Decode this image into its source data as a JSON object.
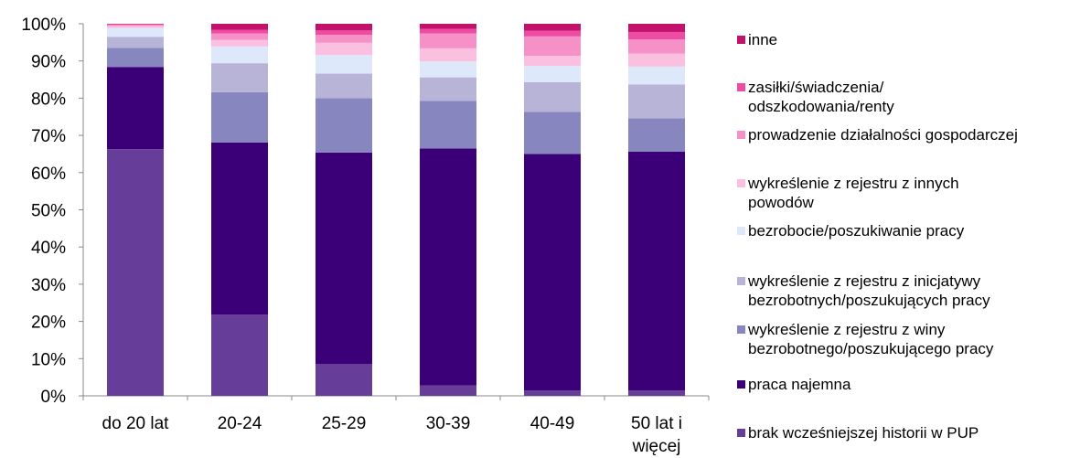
{
  "chart_data": {
    "type": "bar",
    "stacked": true,
    "normalized": true,
    "categories": [
      "do 20  lat",
      "20-24",
      "25-29",
      "30-39",
      "40-49",
      "50 lat i\nwięcej"
    ],
    "y_ticks": [
      "0%",
      "10%",
      "20%",
      "30%",
      "40%",
      "50%",
      "60%",
      "70%",
      "80%",
      "90%",
      "100%"
    ],
    "ylim": [
      0,
      100
    ],
    "grid": false,
    "legend_position": "right",
    "series": [
      {
        "name": "brak wcześniejszej historii w PUP",
        "color": "#673d9a",
        "values": [
          66.3,
          21.8,
          8.6,
          2.8,
          1.4,
          1.4
        ]
      },
      {
        "name": "praca najemna",
        "color": "#3b0078",
        "values": [
          22.1,
          46.3,
          56.8,
          63.7,
          63.6,
          64.2
        ]
      },
      {
        "name": "wykreślenie z rejestru z winy\nbezrobotnego/poszukującego pracy",
        "color": "#8886bf",
        "values": [
          5.1,
          13.5,
          14.6,
          12.8,
          11.3,
          9.0
        ]
      },
      {
        "name": "wykreślenie z rejestru z inicjatywy\nbezrobotnych/poszukujących pracy",
        "color": "#b7b4d8",
        "values": [
          3.0,
          7.8,
          6.6,
          6.3,
          8.0,
          9.1
        ]
      },
      {
        "name": "bezrobocie/poszukiwanie pracy",
        "color": "#dde8fb",
        "values": [
          2.4,
          4.5,
          5.0,
          4.3,
          4.4,
          4.8
        ]
      },
      {
        "name": "wykreślenie z rejestru z innych\npowodów",
        "color": "#fbbfe0",
        "values": [
          0.5,
          1.8,
          3.3,
          3.5,
          2.7,
          3.5
        ]
      },
      {
        "name": "prowadzenie działalności gospodarczej",
        "color": "#f691c8",
        "values": [
          0.3,
          1.7,
          2.1,
          4.0,
          5.2,
          3.8
        ]
      },
      {
        "name": "zasiłki/świadczenia/\nodszkodowania/renty",
        "color": "#ee4ca2",
        "values": [
          0.2,
          1.0,
          1.2,
          1.2,
          1.5,
          2.0
        ]
      },
      {
        "name": "inne",
        "color": "#c2126c",
        "values": [
          0.1,
          1.6,
          1.8,
          1.4,
          1.9,
          2.2
        ]
      }
    ]
  },
  "legend": {
    "items": [
      {
        "label": "inne",
        "color": "#c2126c"
      },
      {
        "label": "zasiłki/świadczenia/\nodszkodowania/renty",
        "color": "#ee4ca2"
      },
      {
        "label": "prowadzenie działalności gospodarczej",
        "color": "#f691c8"
      },
      {
        "label": "wykreślenie z rejestru z innych\npowodów",
        "color": "#fbbfe0"
      },
      {
        "label": "bezrobocie/poszukiwanie pracy",
        "color": "#dde8fb"
      },
      {
        "label": "wykreślenie z rejestru z inicjatywy\nbezrobotnych/poszukujących pracy",
        "color": "#b7b4d8"
      },
      {
        "label": "wykreślenie z rejestru z winy\nbezrobotnego/poszukującego pracy",
        "color": "#8886bf"
      },
      {
        "label": "praca najemna",
        "color": "#3b0078"
      },
      {
        "label": "brak wcześniejszej historii w PUP",
        "color": "#673d9a"
      }
    ]
  }
}
